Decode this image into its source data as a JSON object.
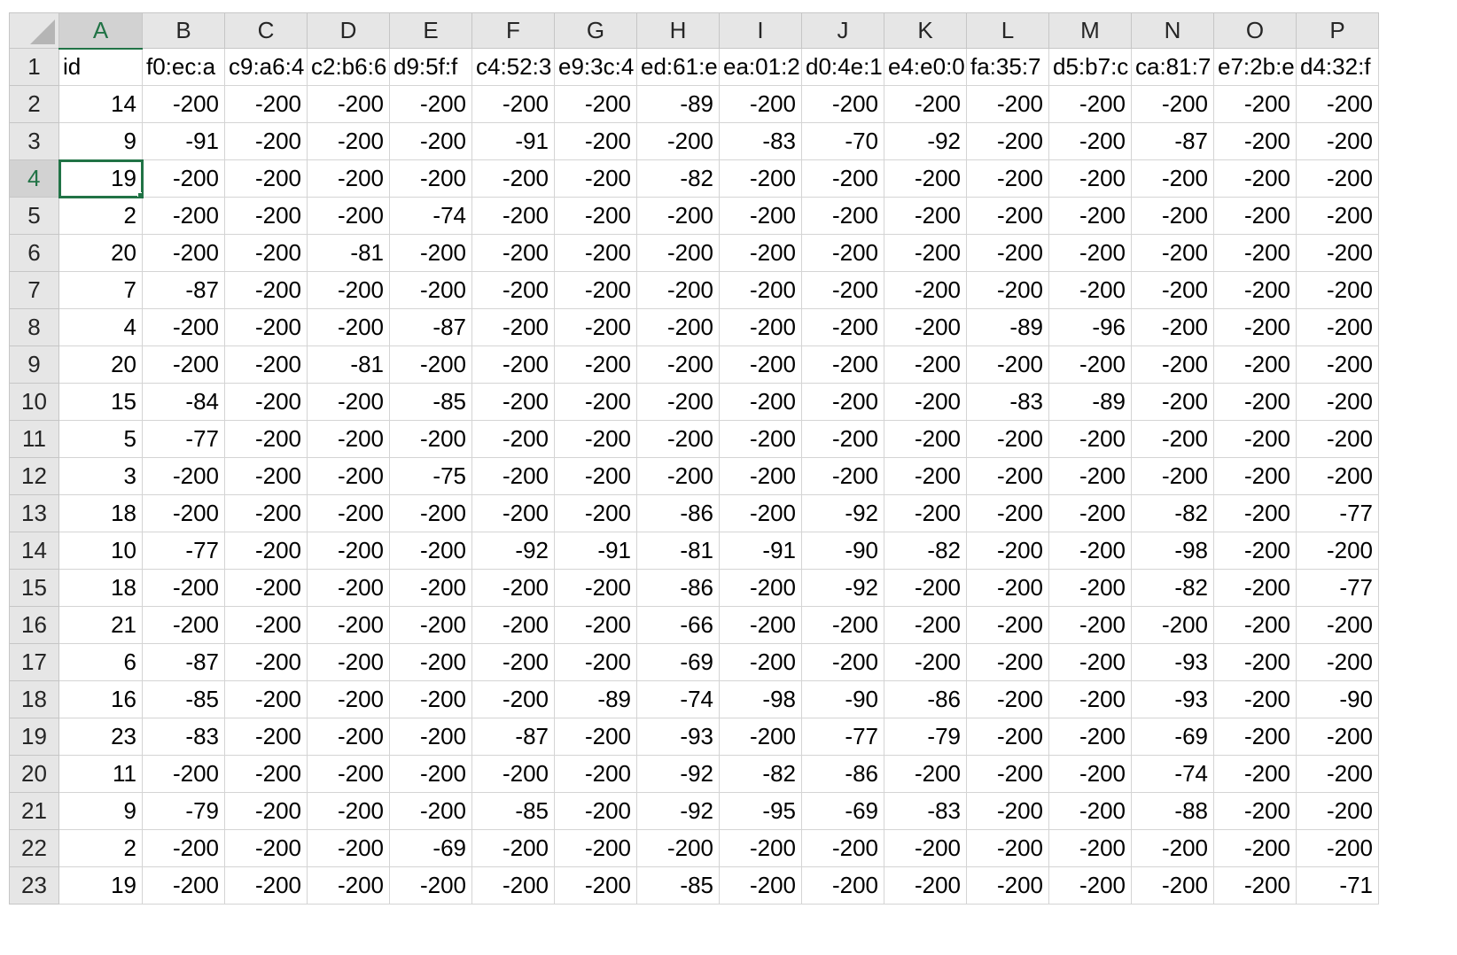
{
  "columns": [
    "A",
    "B",
    "C",
    "D",
    "E",
    "F",
    "G",
    "H",
    "I",
    "J",
    "K",
    "L",
    "M",
    "N",
    "O",
    "P"
  ],
  "active_cell": {
    "row": "4",
    "col": "A"
  },
  "rows": [
    {
      "n": "1",
      "cells": [
        "id",
        "f0:ec:a",
        "c9:a6:4",
        "c2:b6:6",
        "d9:5f:f",
        "c4:52:3",
        "e9:3c:4",
        "ed:61:e",
        "ea:01:2",
        "d0:4e:1",
        "e4:e0:0",
        "fa:35:7",
        "d5:b7:c",
        "ca:81:7",
        "e7:2b:e",
        "d4:32:f"
      ]
    },
    {
      "n": "2",
      "cells": [
        "14",
        "-200",
        "-200",
        "-200",
        "-200",
        "-200",
        "-200",
        "-89",
        "-200",
        "-200",
        "-200",
        "-200",
        "-200",
        "-200",
        "-200",
        "-200"
      ]
    },
    {
      "n": "3",
      "cells": [
        "9",
        "-91",
        "-200",
        "-200",
        "-200",
        "-91",
        "-200",
        "-200",
        "-83",
        "-70",
        "-92",
        "-200",
        "-200",
        "-87",
        "-200",
        "-200"
      ]
    },
    {
      "n": "4",
      "cells": [
        "19",
        "-200",
        "-200",
        "-200",
        "-200",
        "-200",
        "-200",
        "-82",
        "-200",
        "-200",
        "-200",
        "-200",
        "-200",
        "-200",
        "-200",
        "-200"
      ]
    },
    {
      "n": "5",
      "cells": [
        "2",
        "-200",
        "-200",
        "-200",
        "-74",
        "-200",
        "-200",
        "-200",
        "-200",
        "-200",
        "-200",
        "-200",
        "-200",
        "-200",
        "-200",
        "-200"
      ]
    },
    {
      "n": "6",
      "cells": [
        "20",
        "-200",
        "-200",
        "-81",
        "-200",
        "-200",
        "-200",
        "-200",
        "-200",
        "-200",
        "-200",
        "-200",
        "-200",
        "-200",
        "-200",
        "-200"
      ]
    },
    {
      "n": "7",
      "cells": [
        "7",
        "-87",
        "-200",
        "-200",
        "-200",
        "-200",
        "-200",
        "-200",
        "-200",
        "-200",
        "-200",
        "-200",
        "-200",
        "-200",
        "-200",
        "-200"
      ]
    },
    {
      "n": "8",
      "cells": [
        "4",
        "-200",
        "-200",
        "-200",
        "-87",
        "-200",
        "-200",
        "-200",
        "-200",
        "-200",
        "-200",
        "-89",
        "-96",
        "-200",
        "-200",
        "-200"
      ]
    },
    {
      "n": "9",
      "cells": [
        "20",
        "-200",
        "-200",
        "-81",
        "-200",
        "-200",
        "-200",
        "-200",
        "-200",
        "-200",
        "-200",
        "-200",
        "-200",
        "-200",
        "-200",
        "-200"
      ]
    },
    {
      "n": "10",
      "cells": [
        "15",
        "-84",
        "-200",
        "-200",
        "-85",
        "-200",
        "-200",
        "-200",
        "-200",
        "-200",
        "-200",
        "-83",
        "-89",
        "-200",
        "-200",
        "-200"
      ]
    },
    {
      "n": "11",
      "cells": [
        "5",
        "-77",
        "-200",
        "-200",
        "-200",
        "-200",
        "-200",
        "-200",
        "-200",
        "-200",
        "-200",
        "-200",
        "-200",
        "-200",
        "-200",
        "-200"
      ]
    },
    {
      "n": "12",
      "cells": [
        "3",
        "-200",
        "-200",
        "-200",
        "-75",
        "-200",
        "-200",
        "-200",
        "-200",
        "-200",
        "-200",
        "-200",
        "-200",
        "-200",
        "-200",
        "-200"
      ]
    },
    {
      "n": "13",
      "cells": [
        "18",
        "-200",
        "-200",
        "-200",
        "-200",
        "-200",
        "-200",
        "-86",
        "-200",
        "-92",
        "-200",
        "-200",
        "-200",
        "-82",
        "-200",
        "-77"
      ]
    },
    {
      "n": "14",
      "cells": [
        "10",
        "-77",
        "-200",
        "-200",
        "-200",
        "-92",
        "-91",
        "-81",
        "-91",
        "-90",
        "-82",
        "-200",
        "-200",
        "-98",
        "-200",
        "-200"
      ]
    },
    {
      "n": "15",
      "cells": [
        "18",
        "-200",
        "-200",
        "-200",
        "-200",
        "-200",
        "-200",
        "-86",
        "-200",
        "-92",
        "-200",
        "-200",
        "-200",
        "-82",
        "-200",
        "-77"
      ]
    },
    {
      "n": "16",
      "cells": [
        "21",
        "-200",
        "-200",
        "-200",
        "-200",
        "-200",
        "-200",
        "-66",
        "-200",
        "-200",
        "-200",
        "-200",
        "-200",
        "-200",
        "-200",
        "-200"
      ]
    },
    {
      "n": "17",
      "cells": [
        "6",
        "-87",
        "-200",
        "-200",
        "-200",
        "-200",
        "-200",
        "-69",
        "-200",
        "-200",
        "-200",
        "-200",
        "-200",
        "-93",
        "-200",
        "-200"
      ]
    },
    {
      "n": "18",
      "cells": [
        "16",
        "-85",
        "-200",
        "-200",
        "-200",
        "-200",
        "-89",
        "-74",
        "-98",
        "-90",
        "-86",
        "-200",
        "-200",
        "-93",
        "-200",
        "-90"
      ]
    },
    {
      "n": "19",
      "cells": [
        "23",
        "-83",
        "-200",
        "-200",
        "-200",
        "-87",
        "-200",
        "-93",
        "-200",
        "-77",
        "-79",
        "-200",
        "-200",
        "-69",
        "-200",
        "-200"
      ]
    },
    {
      "n": "20",
      "cells": [
        "11",
        "-200",
        "-200",
        "-200",
        "-200",
        "-200",
        "-200",
        "-92",
        "-82",
        "-86",
        "-200",
        "-200",
        "-200",
        "-74",
        "-200",
        "-200"
      ]
    },
    {
      "n": "21",
      "cells": [
        "9",
        "-79",
        "-200",
        "-200",
        "-200",
        "-85",
        "-200",
        "-92",
        "-95",
        "-69",
        "-83",
        "-200",
        "-200",
        "-88",
        "-200",
        "-200"
      ]
    },
    {
      "n": "22",
      "cells": [
        "2",
        "-200",
        "-200",
        "-200",
        "-69",
        "-200",
        "-200",
        "-200",
        "-200",
        "-200",
        "-200",
        "-200",
        "-200",
        "-200",
        "-200",
        "-200"
      ]
    },
    {
      "n": "23",
      "cells": [
        "19",
        "-200",
        "-200",
        "-200",
        "-200",
        "-200",
        "-200",
        "-85",
        "-200",
        "-200",
        "-200",
        "-200",
        "-200",
        "-200",
        "-200",
        "-71"
      ]
    }
  ]
}
